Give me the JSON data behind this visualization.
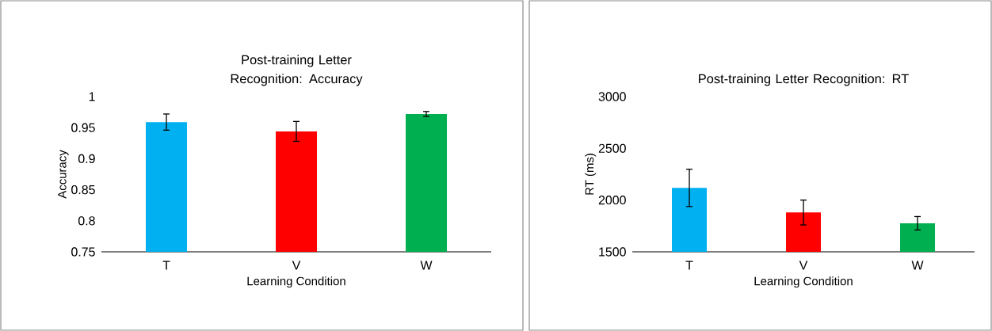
{
  "chart_data": [
    {
      "type": "bar",
      "title": "Post-training Letter Recognition: Accuracy",
      "xlabel": "Learning Condition",
      "ylabel": "Accuracy",
      "categories": [
        "T",
        "V",
        "W"
      ],
      "values": [
        0.959,
        0.944,
        0.972
      ],
      "errors": [
        0.013,
        0.016,
        0.004
      ],
      "colors": [
        "#00b0f0",
        "#ff0000",
        "#00b050"
      ],
      "ylim": [
        0.75,
        1
      ],
      "yticks": [
        0.75,
        0.8,
        0.85,
        0.9,
        0.95,
        1
      ]
    },
    {
      "type": "bar",
      "title": "Post-training Letter Recognition: RT",
      "xlabel": "Learning Condition",
      "ylabel": "RT (ms)",
      "categories": [
        "T",
        "V",
        "W"
      ],
      "values": [
        2118,
        1880,
        1776
      ],
      "errors": [
        180,
        120,
        65
      ],
      "colors": [
        "#00b0f0",
        "#ff0000",
        "#00b050"
      ],
      "ylim": [
        1500,
        3000
      ],
      "yticks": [
        1500,
        2000,
        2500,
        3000
      ]
    }
  ]
}
